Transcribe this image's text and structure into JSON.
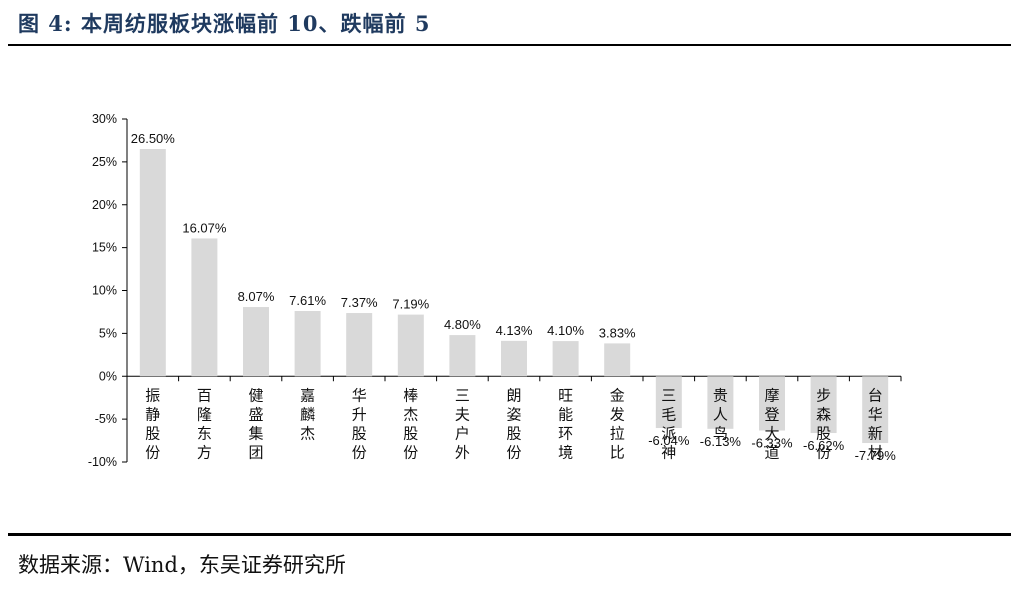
{
  "figure": {
    "title": "图 4:  本周纺服板块涨幅前 10、跌幅前 5",
    "source": "数据来源：Wind，东吴证券研究所"
  },
  "chart_data": {
    "type": "bar",
    "categories": [
      "振静股份",
      "百隆东方",
      "健盛集团",
      "嘉麟杰",
      "华升股份",
      "棒杰股份",
      "三夫户外",
      "朗姿股份",
      "旺能环境",
      "金发拉比",
      "三毛派神",
      "贵人鸟",
      "摩登大道",
      "步森股份",
      "台华新材"
    ],
    "values": [
      26.5,
      16.07,
      8.07,
      7.61,
      7.37,
      7.19,
      4.8,
      4.13,
      4.1,
      3.83,
      -6.04,
      -6.13,
      -6.33,
      -6.62,
      -7.79
    ],
    "value_labels": [
      "26.50%",
      "16.07%",
      "8.07%",
      "7.61%",
      "7.37%",
      "7.19%",
      "4.80%",
      "4.13%",
      "4.10%",
      "3.83%",
      "-6.04%",
      "-6.13%",
      "-6.33%",
      "-6.62%",
      "-7.79%"
    ],
    "yticks": [
      30,
      25,
      20,
      15,
      10,
      5,
      0,
      -5,
      -10
    ],
    "ytick_labels": [
      "30%",
      "25%",
      "20%",
      "15%",
      "10%",
      "5%",
      "0%",
      "-5%",
      "-10%"
    ],
    "ylim": [
      -10,
      30
    ],
    "bar_color": "#d9d9d9",
    "grid": false
  }
}
